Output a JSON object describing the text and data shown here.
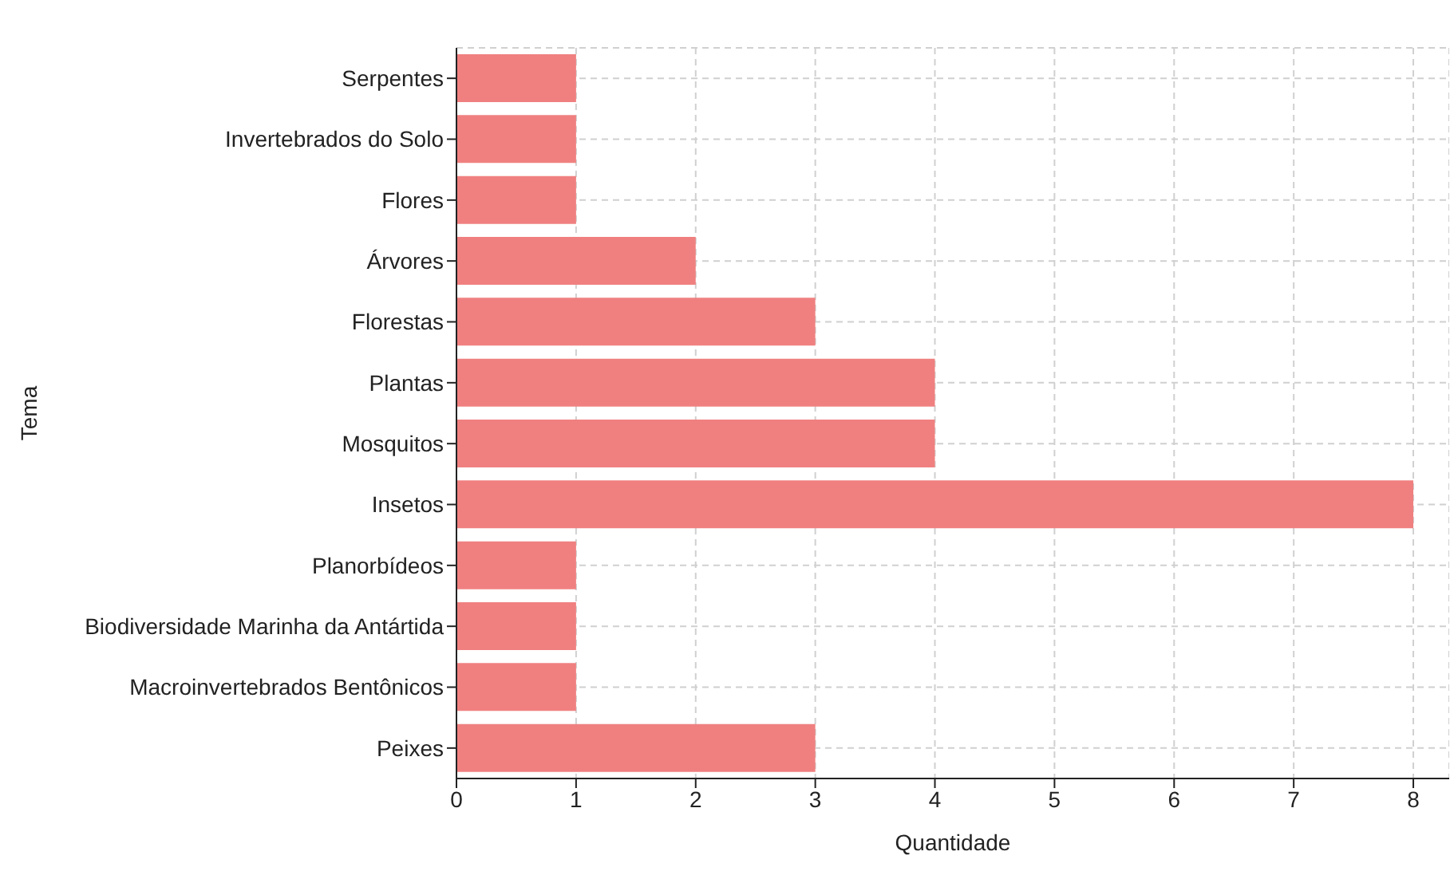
{
  "chart_data": {
    "type": "bar",
    "orientation": "horizontal",
    "xlabel": "Quantidade",
    "ylabel": "Tema",
    "categories": [
      "Serpentes",
      "Invertebrados do Solo",
      "Flores",
      "Árvores",
      "Florestas",
      "Plantas",
      "Mosquitos",
      "Insetos",
      "Planorbídeos",
      "Biodiversidade Marinha da Antártida",
      "Macroinvertebrados Bentônicos",
      "Peixes"
    ],
    "values": [
      1,
      1,
      1,
      2,
      3,
      4,
      4,
      8,
      1,
      1,
      1,
      3
    ],
    "color": "#f08080",
    "xlim": [
      0,
      8.3
    ],
    "xticks": [
      0,
      1,
      2,
      3,
      4,
      5,
      6,
      7,
      8
    ],
    "grid": true
  }
}
